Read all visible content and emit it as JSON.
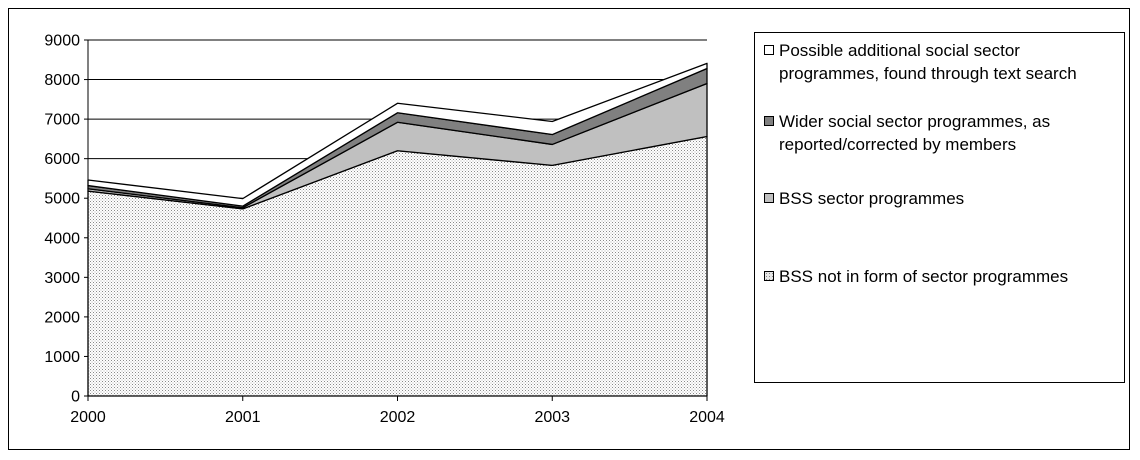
{
  "chart_data": {
    "type": "area",
    "stacked": true,
    "categories": [
      "2000",
      "2001",
      "2002",
      "2003",
      "2004"
    ],
    "ylim": [
      0,
      9000
    ],
    "yticks": [
      "0",
      "1000",
      "2000",
      "3000",
      "4000",
      "5000",
      "6000",
      "7000",
      "8000",
      "9000"
    ],
    "grid": "horizontal",
    "legend_position": "right",
    "series": [
      {
        "name": "BSS not in form of sector programmes",
        "values": [
          5180,
          4730,
          6200,
          5830,
          6560
        ],
        "color": "#e6e6e6",
        "pattern": "dotted"
      },
      {
        "name": "BSS sector programmes",
        "values": [
          60,
          30,
          720,
          530,
          1340
        ],
        "color": "#c0c0c0"
      },
      {
        "name": "Wider social sector programmes, as reported/corrected by members",
        "values": [
          80,
          40,
          240,
          250,
          380
        ],
        "color": "#808080"
      },
      {
        "name": "Possible additional social sector programmes, found through text search",
        "values": [
          140,
          190,
          240,
          330,
          130
        ],
        "color": "#ffffff"
      }
    ]
  },
  "legend": {
    "items": [
      {
        "label": "Possible additional social sector programmes, found through text search",
        "color": "#ffffff"
      },
      {
        "label": "Wider social sector programmes, as reported/corrected by members",
        "color": "#808080"
      },
      {
        "label": "BSS sector programmes",
        "color": "#c0c0c0"
      },
      {
        "label": "BSS not in form of sector programmes",
        "color": "#e6e6e6"
      }
    ]
  }
}
